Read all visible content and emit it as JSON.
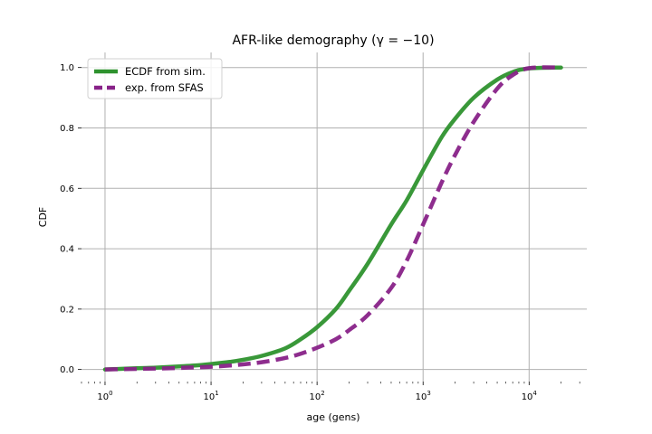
{
  "chart_data": {
    "type": "line",
    "title": "AFR-like demography (γ = −10)",
    "xlabel": "age (gens)",
    "ylabel": "CDF",
    "xscale": "log",
    "xlim": [
      0.6,
      35000
    ],
    "ylim": [
      -0.04,
      1.05
    ],
    "xticks": [
      1,
      10,
      100,
      1000,
      10000
    ],
    "xtick_labels": [
      {
        "base": "10",
        "exp": "0"
      },
      {
        "base": "10",
        "exp": "1"
      },
      {
        "base": "10",
        "exp": "2"
      },
      {
        "base": "10",
        "exp": "3"
      },
      {
        "base": "10",
        "exp": "4"
      }
    ],
    "yticks": [
      0.0,
      0.2,
      0.4,
      0.6,
      0.8,
      1.0
    ],
    "ytick_labels": [
      "0.0",
      "0.2",
      "0.4",
      "0.6",
      "0.8",
      "1.0"
    ],
    "grid": true,
    "legend_position": "top-left",
    "series": [
      {
        "name": "ECDF from sim.",
        "color": "#2e922e",
        "style": "solid",
        "x": [
          1,
          2,
          3,
          5,
          7,
          10,
          15,
          20,
          30,
          50,
          70,
          100,
          150,
          200,
          300,
          500,
          700,
          1000,
          1500,
          2000,
          3000,
          5000,
          7000,
          10000,
          20000
        ],
        "y": [
          0.0,
          0.004,
          0.006,
          0.01,
          0.013,
          0.018,
          0.025,
          0.032,
          0.045,
          0.07,
          0.1,
          0.14,
          0.2,
          0.26,
          0.35,
          0.48,
          0.56,
          0.66,
          0.77,
          0.83,
          0.9,
          0.96,
          0.985,
          0.997,
          1.0
        ]
      },
      {
        "name": "exp. from SFAS",
        "color": "#882288",
        "style": "dashed",
        "x": [
          1,
          2,
          3,
          5,
          7,
          10,
          15,
          20,
          30,
          50,
          70,
          100,
          150,
          200,
          300,
          500,
          700,
          1000,
          1500,
          2000,
          3000,
          5000,
          7000,
          10000,
          20000
        ],
        "y": [
          0.0,
          0.002,
          0.003,
          0.005,
          0.007,
          0.009,
          0.013,
          0.017,
          0.024,
          0.038,
          0.052,
          0.072,
          0.1,
          0.13,
          0.18,
          0.27,
          0.36,
          0.48,
          0.62,
          0.71,
          0.82,
          0.93,
          0.975,
          0.998,
          1.0
        ]
      }
    ]
  }
}
